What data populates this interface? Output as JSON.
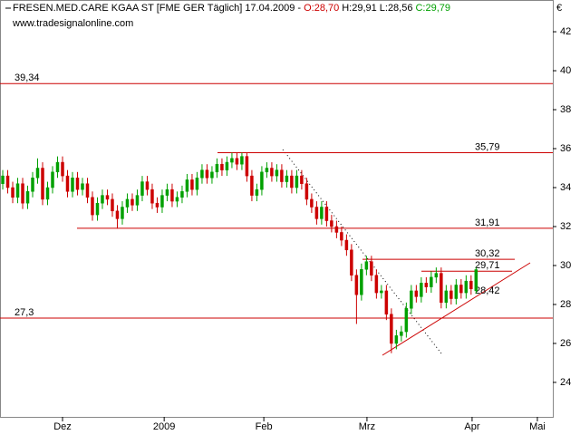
{
  "chart_data": {
    "type": "candlestick",
    "title": "FRESEN.MED.CARE KGAA ST [FME GER  Täglich] 17.04.2009 -",
    "last_open": "O:28,70",
    "last_high": "H:29,91",
    "last_low": "L:28,56",
    "last_close": "C:29,79",
    "subtitle": "www.tradesignalonline.com",
    "currency": "€",
    "up_color": "#00a000",
    "down_color": "#cc0000",
    "level_color": "#cc0000",
    "open": [
      34.2,
      34.6,
      34.0,
      33.5,
      34.2,
      33.2,
      33.8,
      34.5,
      35.0,
      33.4,
      34.0,
      34.8,
      35.3,
      34.6,
      33.8,
      34.5,
      33.9,
      34.2,
      33.5,
      32.6,
      33.2,
      33.6,
      33.4,
      32.8,
      32.4,
      33.0,
      33.4,
      33.1,
      33.6,
      34.3,
      33.9,
      33.2,
      33.0,
      33.6,
      33.9,
      33.3,
      33.5,
      33.8,
      34.4,
      33.9,
      34.5,
      34.9,
      34.5,
      34.8,
      35.2,
      34.9,
      35.3,
      35.5,
      35.2,
      35.6,
      34.6,
      33.6,
      33.9,
      34.8,
      35.0,
      34.6,
      34.9,
      34.3,
      34.6,
      34.0,
      34.6,
      34.2,
      33.4,
      33.0,
      32.4,
      33.0,
      32.3,
      32.0,
      31.7,
      31.3,
      30.8,
      29.5,
      28.5,
      29.8,
      30.2,
      29.5,
      28.6,
      28.7,
      27.5,
      26.0,
      26.4,
      26.6,
      27.8,
      28.7,
      28.4,
      29.1,
      28.9,
      29.4,
      29.6,
      28.1,
      28.7,
      28.3,
      29.0,
      28.6,
      29.2,
      28.7
    ],
    "high": [
      34.9,
      34.9,
      34.3,
      34.5,
      34.5,
      34.1,
      34.8,
      35.5,
      35.3,
      34.3,
      35.1,
      35.6,
      35.6,
      34.9,
      34.8,
      34.8,
      34.5,
      34.5,
      33.8,
      33.5,
      33.9,
      33.9,
      33.7,
      33.1,
      33.3,
      33.7,
      33.7,
      33.9,
      34.6,
      34.6,
      34.2,
      33.5,
      33.9,
      34.2,
      34.2,
      33.8,
      34.1,
      34.7,
      34.7,
      34.8,
      35.2,
      35.2,
      35.1,
      35.5,
      35.5,
      35.6,
      35.79,
      35.79,
      35.79,
      35.79,
      34.9,
      34.2,
      35.1,
      35.3,
      35.3,
      35.2,
      35.2,
      34.9,
      34.9,
      34.9,
      34.9,
      34.5,
      33.7,
      33.3,
      33.3,
      33.3,
      32.6,
      32.3,
      32.0,
      31.6,
      31.1,
      29.8,
      30.1,
      30.5,
      30.5,
      29.8,
      29.0,
      29.0,
      27.8,
      26.7,
      26.9,
      28.1,
      29.0,
      29.0,
      29.4,
      29.4,
      29.7,
      29.9,
      29.9,
      29.0,
      29.0,
      29.3,
      29.3,
      29.5,
      29.5,
      29.91
    ],
    "low": [
      33.9,
      33.7,
      33.2,
      33.2,
      32.9,
      32.9,
      33.5,
      34.2,
      33.1,
      33.1,
      33.7,
      34.5,
      34.3,
      33.5,
      33.5,
      33.6,
      33.6,
      33.2,
      32.3,
      32.3,
      32.9,
      33.1,
      32.5,
      31.9,
      32.1,
      32.7,
      32.8,
      32.8,
      33.3,
      33.6,
      32.9,
      32.7,
      32.7,
      33.3,
      33.0,
      33.0,
      33.2,
      33.5,
      33.6,
      33.6,
      34.2,
      34.2,
      34.2,
      34.5,
      34.6,
      34.6,
      35.0,
      34.9,
      34.9,
      34.3,
      33.3,
      33.3,
      33.6,
      34.5,
      34.3,
      34.3,
      34.0,
      34.0,
      33.7,
      33.7,
      33.9,
      33.1,
      32.7,
      32.1,
      32.1,
      32.0,
      31.7,
      31.4,
      31.0,
      30.5,
      29.2,
      27.0,
      28.2,
      29.5,
      29.2,
      28.3,
      28.3,
      27.2,
      25.5,
      25.7,
      26.1,
      26.3,
      27.5,
      28.1,
      28.1,
      28.6,
      28.6,
      29.1,
      27.8,
      27.8,
      28.0,
      28.0,
      28.3,
      28.3,
      28.5,
      28.56
    ],
    "close": [
      34.6,
      34.0,
      33.5,
      34.2,
      33.2,
      33.8,
      34.5,
      35.0,
      33.4,
      34.0,
      34.8,
      35.3,
      34.6,
      33.8,
      34.5,
      33.9,
      34.2,
      33.5,
      32.6,
      33.2,
      33.6,
      33.4,
      32.8,
      32.4,
      33.0,
      33.4,
      33.1,
      33.6,
      34.3,
      33.9,
      33.2,
      33.0,
      33.6,
      33.9,
      33.3,
      33.5,
      33.8,
      34.4,
      33.9,
      34.5,
      34.9,
      34.5,
      34.8,
      35.2,
      34.9,
      35.3,
      35.5,
      35.2,
      35.6,
      34.6,
      33.6,
      33.9,
      34.8,
      35.0,
      34.6,
      34.9,
      34.3,
      34.6,
      34.0,
      34.6,
      34.2,
      33.4,
      33.0,
      32.4,
      33.0,
      32.3,
      32.0,
      31.7,
      31.3,
      30.8,
      29.5,
      28.5,
      29.8,
      30.2,
      29.5,
      28.6,
      28.7,
      27.5,
      26.0,
      26.4,
      26.6,
      27.8,
      28.7,
      28.4,
      29.1,
      28.9,
      29.4,
      29.6,
      28.1,
      28.7,
      28.3,
      29.0,
      28.6,
      29.2,
      28.8,
      29.79
    ],
    "xlim": [
      -0.55,
      110.4
    ],
    "xticks": [
      {
        "value": 12,
        "label": "Dez"
      },
      {
        "value": 32.4,
        "label": "2009"
      },
      {
        "value": 52.4,
        "label": "Feb"
      },
      {
        "value": 73.1,
        "label": "Mrz"
      },
      {
        "value": 94.2,
        "label": "Apr"
      },
      {
        "value": 107.3,
        "label": "Mai"
      }
    ],
    "ylim": [
      22.23,
      43.63
    ],
    "yticks": [
      24,
      26,
      28,
      30,
      32,
      34,
      36,
      38,
      40,
      42
    ],
    "levels": [
      {
        "value": 39.34,
        "label": "39,34"
      },
      {
        "value": 35.79,
        "label": "35,79"
      },
      {
        "value": 31.91,
        "label": "31,91"
      },
      {
        "value": 30.32,
        "label": "30,32"
      },
      {
        "value": 29.71,
        "label": "29,71"
      },
      {
        "value": 28.42,
        "label": "28,42"
      },
      {
        "value": 27.3,
        "label": "27,3"
      }
    ]
  }
}
